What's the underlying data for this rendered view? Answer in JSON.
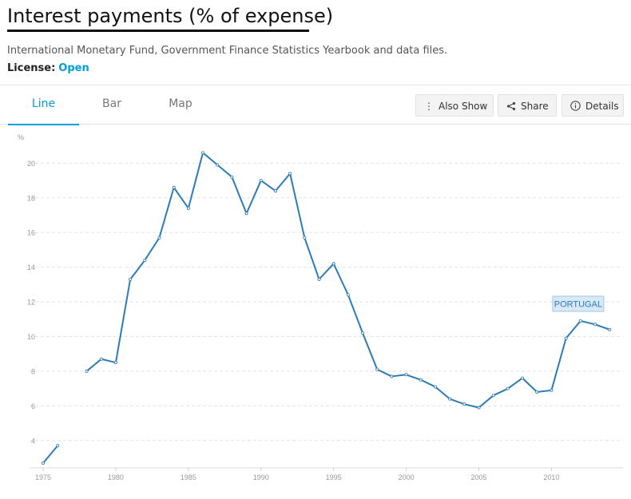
{
  "page": {
    "title": "Interest payments (% of expense)",
    "source": "International Monetary Fund, Government Finance Statistics Yearbook and data files.",
    "license_label": "License:",
    "license_value": "Open"
  },
  "tabs": [
    {
      "label": "Line",
      "active": true
    },
    {
      "label": "Bar",
      "active": false
    },
    {
      "label": "Map",
      "active": false
    }
  ],
  "actions": {
    "also_show": "Also Show",
    "share": "Share",
    "details": "Details"
  },
  "colors": {
    "accent": "#009fda",
    "line": "#2d7bb6",
    "label_bg": "#d7e9f6"
  },
  "chart_data": {
    "type": "line",
    "ylabel": "%",
    "xlim": [
      1975,
      2014
    ],
    "ylim": [
      2.7,
      20.8
    ],
    "xticks": [
      1975,
      1980,
      1985,
      1990,
      1995,
      2000,
      2005,
      2010
    ],
    "yticks": [
      4,
      6,
      8,
      10,
      12,
      14,
      16,
      18,
      20
    ],
    "grid": true,
    "series": [
      {
        "name": "PORTUGAL",
        "x": [
          1975,
          1976,
          1977,
          1978,
          1979,
          1980,
          1981,
          1982,
          1983,
          1984,
          1985,
          1986,
          1987,
          1988,
          1989,
          1990,
          1991,
          1992,
          1993,
          1994,
          1995,
          1996,
          1997,
          1998,
          1999,
          2000,
          2001,
          2002,
          2003,
          2004,
          2005,
          2006,
          2007,
          2008,
          2009,
          2010,
          2011,
          2012,
          2013,
          2014
        ],
        "values": [
          2.7,
          3.7,
          null,
          8.0,
          8.7,
          8.5,
          13.3,
          14.4,
          15.7,
          18.6,
          17.4,
          20.6,
          19.9,
          19.2,
          17.1,
          19.0,
          18.4,
          19.4,
          15.7,
          13.3,
          14.2,
          12.4,
          10.2,
          8.1,
          7.7,
          7.8,
          7.5,
          7.1,
          6.4,
          6.1,
          5.9,
          6.6,
          7.0,
          7.6,
          6.8,
          6.9,
          9.9,
          10.9,
          10.7,
          10.4
        ]
      }
    ]
  }
}
